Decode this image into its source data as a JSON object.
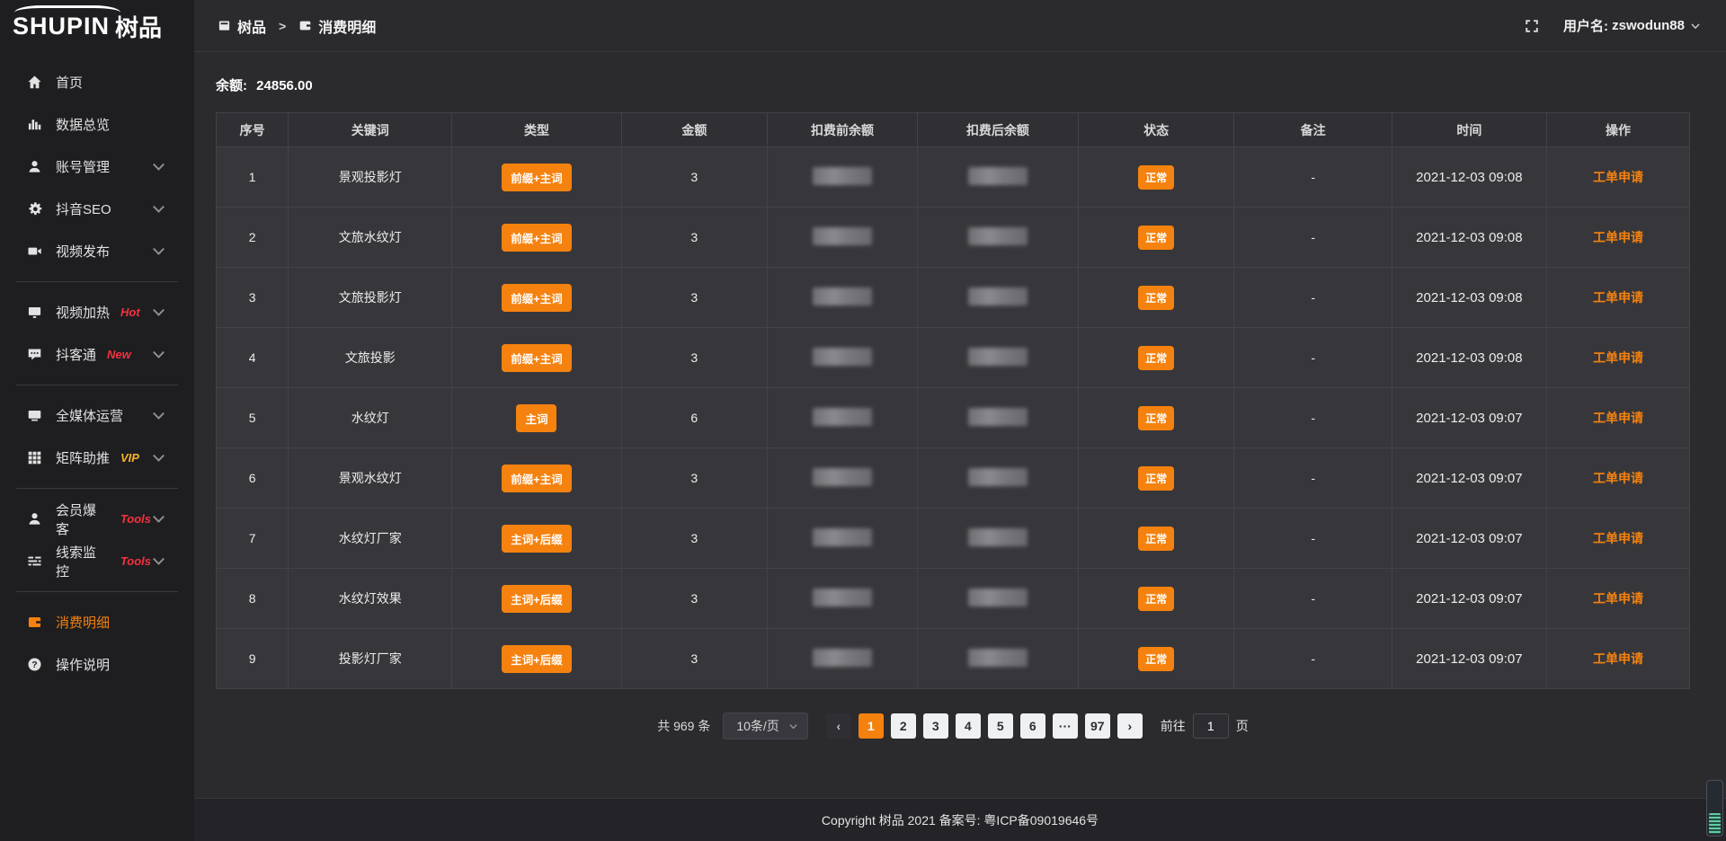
{
  "logo": {
    "text_en": "SHUPIN",
    "text_cn": "树品"
  },
  "topbar": {
    "breadcrumb": [
      {
        "id": "shupin",
        "icon": "app-icon",
        "label": "树品"
      },
      {
        "id": "consume-detail",
        "icon": "wallet-icon",
        "label": "消费明细"
      }
    ],
    "separator": ">",
    "user_label": "用户名:",
    "user_name": "zswodun88"
  },
  "sidebar": {
    "sections": [
      {
        "items": [
          {
            "id": "home",
            "icon": "home-icon",
            "label": "首页"
          },
          {
            "id": "data-overview",
            "icon": "bar-chart-icon",
            "label": "数据总览"
          },
          {
            "id": "account-manage",
            "icon": "user-icon",
            "label": "账号管理",
            "chevron": true
          },
          {
            "id": "douyin-seo",
            "icon": "gear-icon",
            "label": "抖音SEO",
            "chevron": true
          },
          {
            "id": "video-publish",
            "icon": "video-icon",
            "label": "视频发布",
            "chevron": true
          }
        ]
      },
      {
        "items": [
          {
            "id": "video-heating",
            "icon": "tv-icon",
            "label": "视频加热",
            "badge": "Hot",
            "badge_style": "red",
            "chevron": true
          },
          {
            "id": "douketong",
            "icon": "chat-icon",
            "label": "抖客通",
            "badge": "New",
            "badge_style": "red",
            "chevron": true
          }
        ]
      },
      {
        "items": [
          {
            "id": "all-media-operation",
            "icon": "monitor-icon",
            "label": "全媒体运营",
            "chevron": true
          },
          {
            "id": "matrix-boost",
            "icon": "grid-icon",
            "label": "矩阵助推",
            "badge": "VIP",
            "badge_style": "gold",
            "chevron": true
          }
        ]
      },
      {
        "items": [
          {
            "id": "member-baoke",
            "icon": "member-icon",
            "label": "会员爆客",
            "badge": "Tools",
            "badge_style": "red",
            "chevron": true
          },
          {
            "id": "lead-monitor",
            "icon": "sliders-icon",
            "label": "线索监控",
            "badge": "Tools",
            "badge_style": "red",
            "chevron": true
          }
        ]
      },
      {
        "items": [
          {
            "id": "consume-detail",
            "icon": "wallet-icon",
            "label": "消费明细",
            "active": true
          },
          {
            "id": "operation-guide",
            "icon": "question-icon",
            "label": "操作说明"
          }
        ]
      }
    ]
  },
  "balance": {
    "label": "余额:",
    "value": "24856.00"
  },
  "table": {
    "headers": [
      "序号",
      "关键词",
      "类型",
      "金额",
      "扣费前余额",
      "扣费后余额",
      "状态",
      "备注",
      "时间",
      "操作"
    ],
    "redacted_columns": [
      "扣费前余额",
      "扣费后余额"
    ],
    "action_label": "工单申请",
    "rows": [
      {
        "index": "1",
        "keyword": "景观投影灯",
        "type": "前缀+主词",
        "amount": "3",
        "status": "正常",
        "remark": "-",
        "time": "2021-12-03 09:08"
      },
      {
        "index": "2",
        "keyword": "文旅水纹灯",
        "type": "前缀+主词",
        "amount": "3",
        "status": "正常",
        "remark": "-",
        "time": "2021-12-03 09:08"
      },
      {
        "index": "3",
        "keyword": "文旅投影灯",
        "type": "前缀+主词",
        "amount": "3",
        "status": "正常",
        "remark": "-",
        "time": "2021-12-03 09:08"
      },
      {
        "index": "4",
        "keyword": "文旅投影",
        "type": "前缀+主词",
        "amount": "3",
        "status": "正常",
        "remark": "-",
        "time": "2021-12-03 09:08"
      },
      {
        "index": "5",
        "keyword": "水纹灯",
        "type": "主词",
        "amount": "6",
        "status": "正常",
        "remark": "-",
        "time": "2021-12-03 09:07"
      },
      {
        "index": "6",
        "keyword": "景观水纹灯",
        "type": "前缀+主词",
        "amount": "3",
        "status": "正常",
        "remark": "-",
        "time": "2021-12-03 09:07"
      },
      {
        "index": "7",
        "keyword": "水纹灯厂家",
        "type": "主词+后缀",
        "amount": "3",
        "status": "正常",
        "remark": "-",
        "time": "2021-12-03 09:07"
      },
      {
        "index": "8",
        "keyword": "水纹灯效果",
        "type": "主词+后缀",
        "amount": "3",
        "status": "正常",
        "remark": "-",
        "time": "2021-12-03 09:07"
      },
      {
        "index": "9",
        "keyword": "投影灯厂家",
        "type": "主词+后缀",
        "amount": "3",
        "status": "正常",
        "remark": "-",
        "time": "2021-12-03 09:07"
      }
    ]
  },
  "pagination": {
    "total": "共 969 条",
    "page_size": "10条/页",
    "pages": [
      "1",
      "2",
      "3",
      "4",
      "5",
      "6",
      "···",
      "97"
    ],
    "active_page": "1",
    "prev_glyph": "‹",
    "next_glyph": "›",
    "goto_label": "前往",
    "goto_value": "1",
    "goto_suffix": "页"
  },
  "footer": {
    "copyright": "Copyright 树品 2021 备案号: 粤ICP备09019646号"
  },
  "colors": {
    "accent_orange": "#f5820f",
    "badge_red": "#f5313d",
    "badge_gold": "#f3b32a",
    "sidebar_bg": "#1e1e21",
    "page_bg": "#2b2b2e",
    "row_bg": "#37373b"
  }
}
